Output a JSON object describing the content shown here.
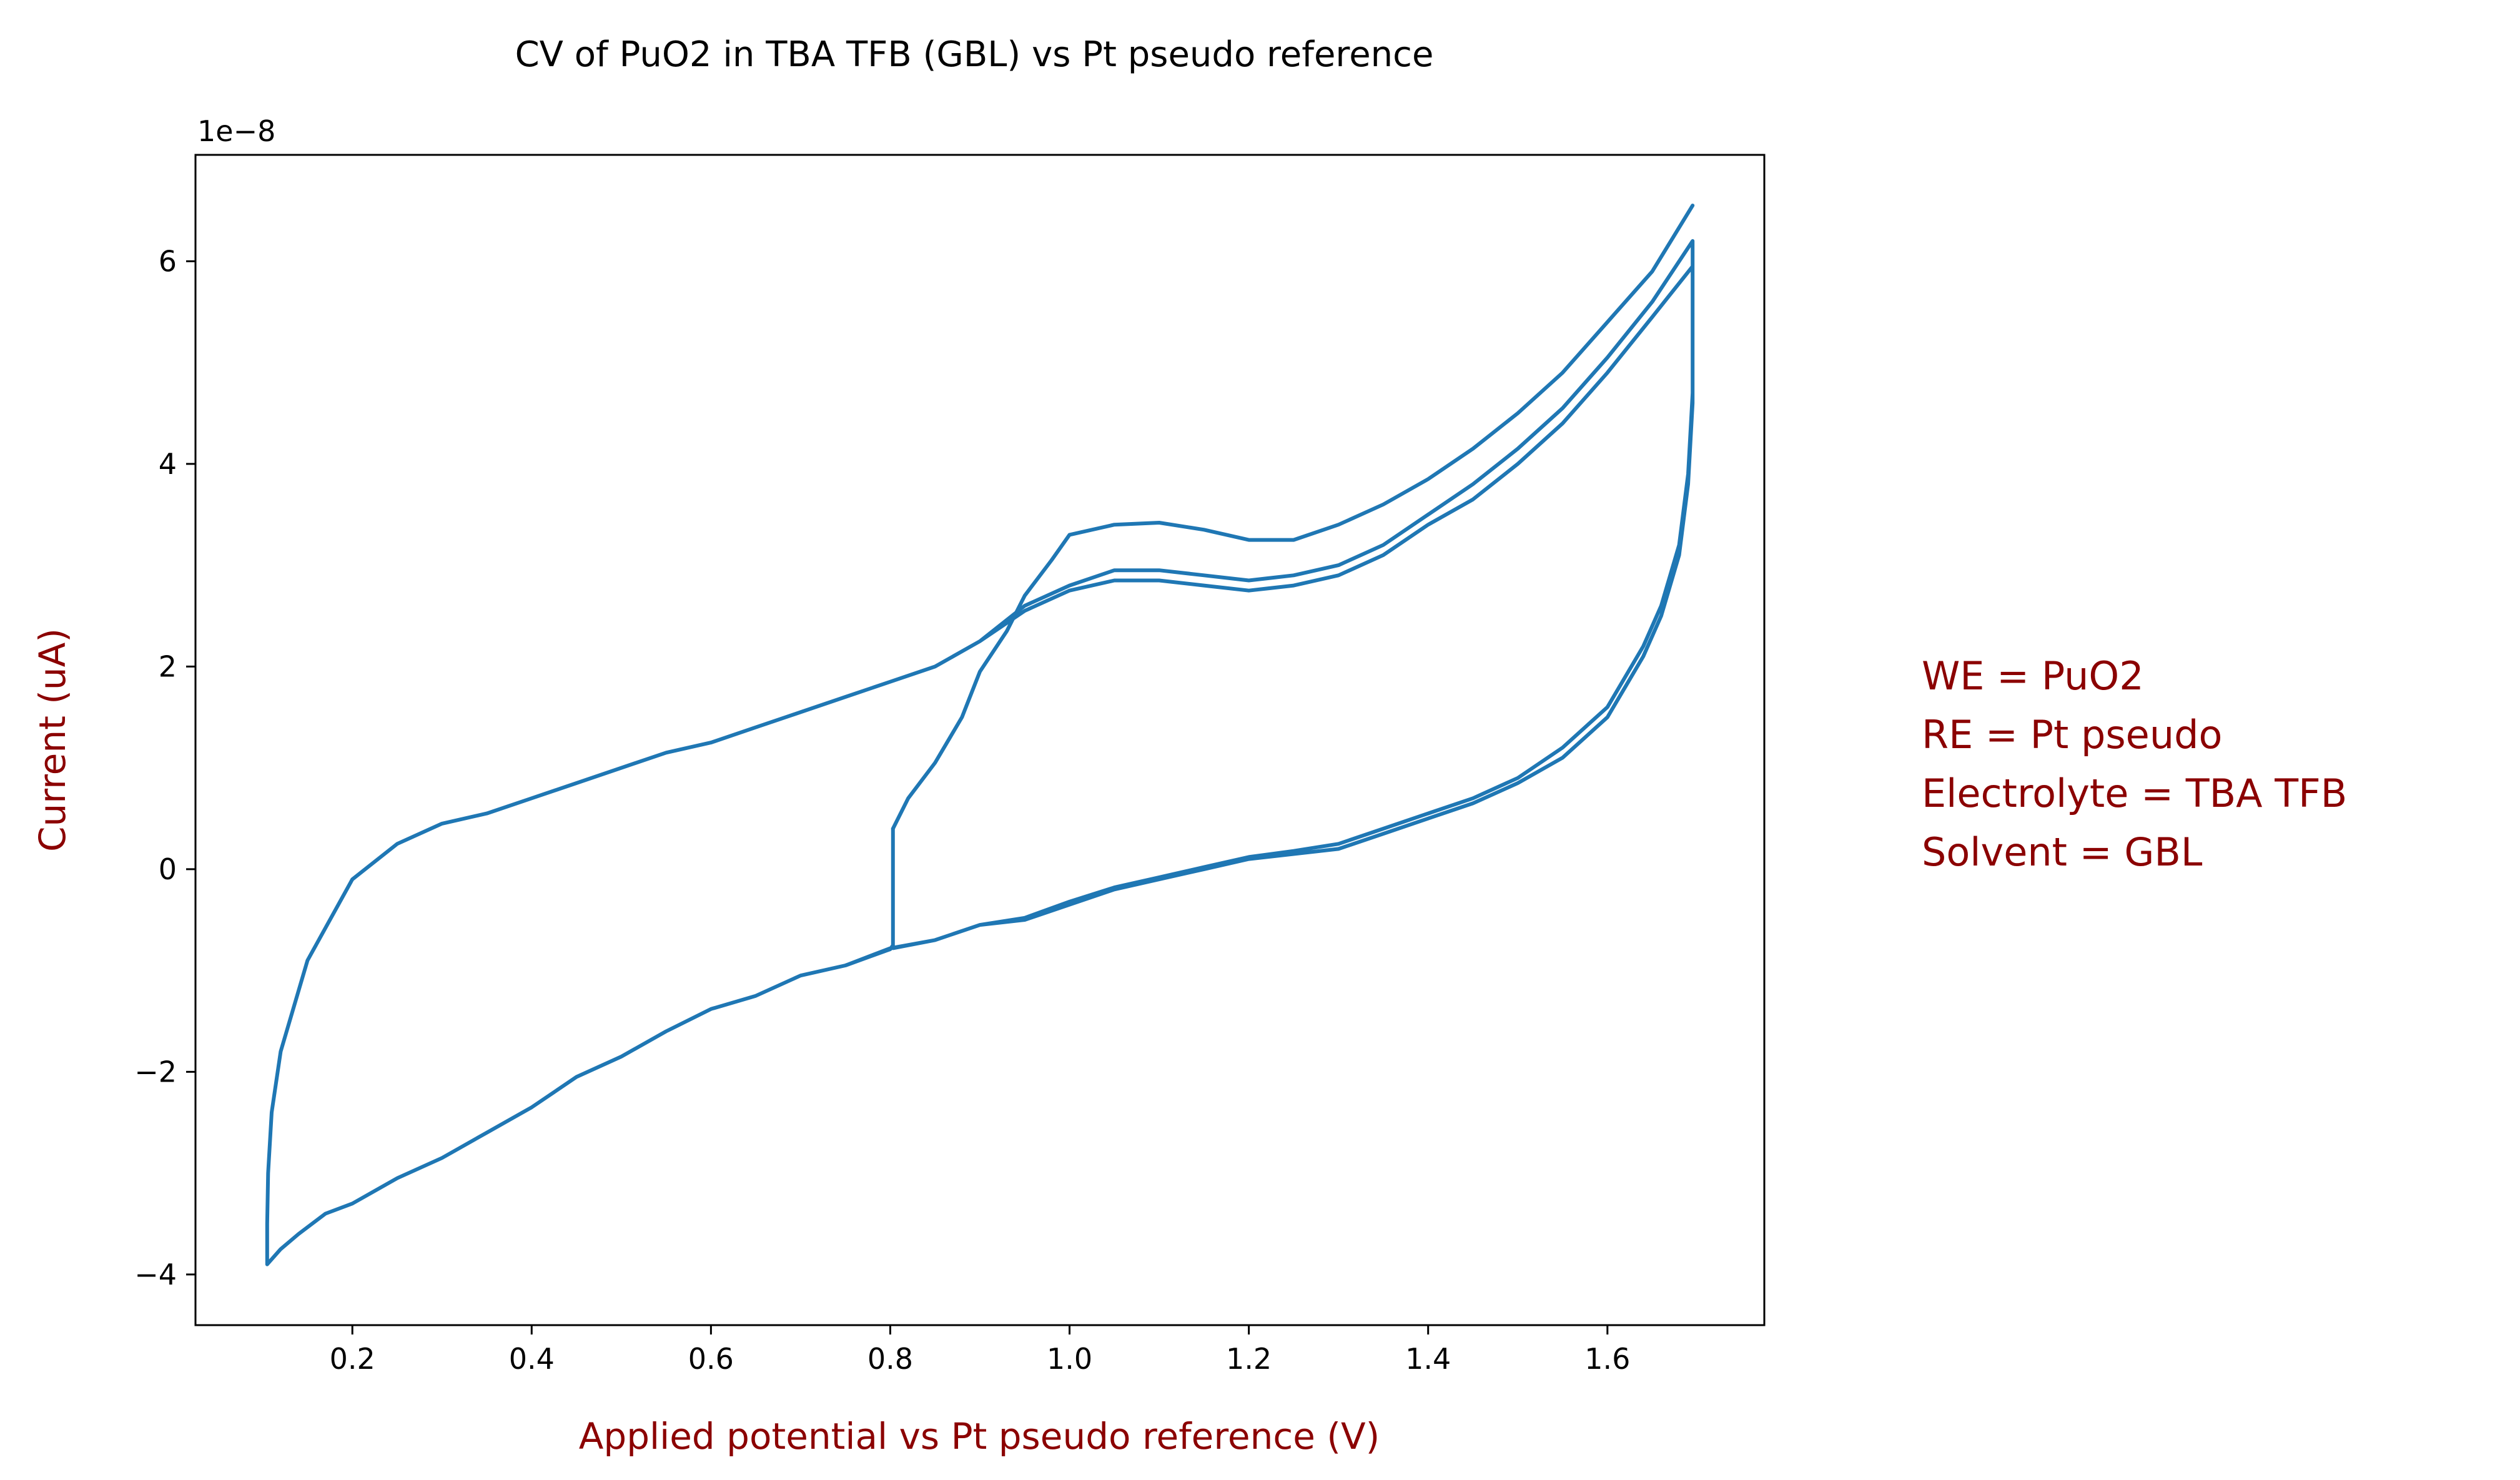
{
  "colors": {
    "line": "#1f77b4",
    "label": "#8b0000",
    "axis": "#000000",
    "background": "#ffffff"
  },
  "chart_data": {
    "type": "line",
    "title": "CV of PuO2 in TBA TFB (GBL) vs Pt pseudo reference",
    "xlabel": "Applied potential vs Pt pseudo reference (V)",
    "ylabel": "Current (uA)",
    "offset_label": "1e−8",
    "y_scale_factor": 1e-08,
    "xlim": [
      0.025,
      1.775
    ],
    "ylim": [
      -4.5,
      7.05
    ],
    "x_ticks": [
      0.2,
      0.4,
      0.6,
      0.8,
      1.0,
      1.2,
      1.4,
      1.6
    ],
    "x_tick_labels": [
      "0.2",
      "0.4",
      "0.6",
      "0.8",
      "1.0",
      "1.2",
      "1.4",
      "1.6"
    ],
    "y_ticks": [
      -4,
      -2,
      0,
      2,
      4,
      6
    ],
    "y_tick_labels": [
      "−4",
      "−2",
      "0",
      "2",
      "4",
      "6"
    ],
    "grid": false,
    "annotation": [
      "WE = PuO2",
      "RE = Pt pseudo",
      "Electrolyte = TBA TFB",
      "Solvent = GBL"
    ],
    "series": [
      {
        "x": [
          0.803,
          0.803,
          0.8,
          0.75,
          0.7,
          0.65,
          0.6,
          0.55,
          0.5,
          0.45,
          0.4,
          0.35,
          0.3,
          0.25,
          0.2,
          0.17,
          0.14,
          0.12,
          0.11,
          0.105,
          0.105,
          0.106,
          0.11,
          0.12,
          0.15,
          0.2,
          0.25,
          0.3,
          0.35,
          0.4,
          0.45,
          0.5,
          0.55,
          0.6,
          0.65,
          0.7,
          0.75,
          0.8,
          0.85,
          0.9,
          0.95,
          1.0,
          1.05,
          1.1,
          1.15,
          1.2,
          1.25,
          1.3,
          1.35,
          1.4,
          1.45,
          1.5,
          1.55,
          1.6,
          1.65,
          1.695,
          1.695,
          1.69,
          1.68,
          1.66,
          1.64,
          1.62,
          1.6,
          1.55,
          1.5,
          1.45,
          1.4,
          1.35,
          1.3,
          1.25,
          1.2,
          1.15,
          1.1,
          1.05,
          1.0,
          0.95,
          0.9,
          0.85,
          0.8,
          0.75,
          0.7,
          0.65,
          0.6,
          0.55,
          0.5,
          0.45,
          0.4,
          0.35,
          0.3,
          0.25,
          0.2,
          0.17,
          0.14,
          0.12,
          0.11,
          0.105,
          0.105,
          0.106,
          0.11,
          0.12,
          0.15,
          0.2,
          0.25,
          0.3,
          0.35,
          0.4,
          0.45,
          0.5,
          0.55,
          0.6,
          0.65,
          0.7,
          0.75,
          0.8,
          0.85,
          0.9,
          0.95,
          1.0,
          1.05,
          1.1,
          1.15,
          1.2,
          1.25,
          1.3,
          1.35,
          1.4,
          1.45,
          1.5,
          1.55,
          1.6,
          1.65,
          1.695,
          1.695,
          1.69,
          1.68,
          1.66,
          1.64,
          1.62,
          1.6,
          1.55,
          1.5,
          1.45,
          1.4,
          1.35,
          1.3,
          1.25,
          1.2,
          1.15,
          1.1,
          1.05,
          1.0,
          0.95,
          0.9,
          0.85,
          0.803,
          0.803
        ],
        "y": [
          0.4,
          -0.75,
          -0.79,
          -0.95,
          -1.05,
          -1.25,
          -1.38,
          -1.6,
          -1.85,
          -2.05,
          -2.35,
          -2.6,
          -2.85,
          -3.05,
          -3.3,
          -3.4,
          -3.6,
          -3.75,
          -3.85,
          -3.9,
          -3.5,
          -3.0,
          -2.4,
          -1.8,
          -0.9,
          -0.1,
          0.25,
          0.45,
          0.55,
          0.7,
          0.85,
          1.0,
          1.15,
          1.25,
          1.4,
          1.55,
          1.7,
          1.85,
          2.0,
          2.25,
          2.55,
          2.75,
          2.85,
          2.85,
          2.8,
          2.75,
          2.8,
          2.9,
          3.1,
          3.4,
          3.65,
          4.0,
          4.4,
          4.9,
          5.45,
          5.95,
          4.6,
          3.8,
          3.1,
          2.5,
          2.1,
          1.8,
          1.5,
          1.1,
          0.85,
          0.65,
          0.5,
          0.35,
          0.2,
          0.15,
          0.1,
          0.0,
          -0.1,
          -0.2,
          -0.35,
          -0.5,
          -0.55,
          -0.7,
          -0.78,
          -0.95,
          -1.05,
          -1.25,
          -1.38,
          -1.6,
          -1.85,
          -2.05,
          -2.35,
          -2.6,
          -2.85,
          -3.05,
          -3.3,
          -3.4,
          -3.6,
          -3.75,
          -3.85,
          -3.9,
          -3.5,
          -3.0,
          -2.4,
          -1.8,
          -0.9,
          -0.1,
          0.25,
          0.45,
          0.55,
          0.7,
          0.85,
          1.0,
          1.15,
          1.25,
          1.4,
          1.55,
          1.7,
          1.85,
          2.0,
          2.25,
          2.6,
          2.8,
          2.95,
          2.95,
          2.9,
          2.85,
          2.9,
          3.0,
          3.2,
          3.5,
          3.8,
          4.15,
          4.55,
          5.05,
          5.6,
          6.2,
          4.7,
          3.9,
          3.2,
          2.6,
          2.2,
          1.9,
          1.6,
          1.2,
          0.9,
          0.7,
          0.55,
          0.4,
          0.25,
          0.18,
          0.12,
          0.02,
          -0.08,
          -0.18,
          -0.32,
          -0.48,
          -0.55,
          -0.7,
          -0.78,
          0.4
        ]
      },
      {
        "x": [
          0.803,
          0.82,
          0.85,
          0.88,
          0.9,
          0.93,
          0.95,
          0.98,
          1.0,
          1.05,
          1.1,
          1.15,
          1.2,
          1.25,
          1.3,
          1.35,
          1.4,
          1.45,
          1.5,
          1.55,
          1.6,
          1.65,
          1.695
        ],
        "y": [
          0.4,
          0.7,
          1.05,
          1.5,
          1.95,
          2.35,
          2.7,
          3.05,
          3.3,
          3.4,
          3.42,
          3.35,
          3.25,
          3.25,
          3.4,
          3.6,
          3.85,
          4.15,
          4.5,
          4.9,
          5.4,
          5.9,
          6.55
        ]
      }
    ]
  }
}
